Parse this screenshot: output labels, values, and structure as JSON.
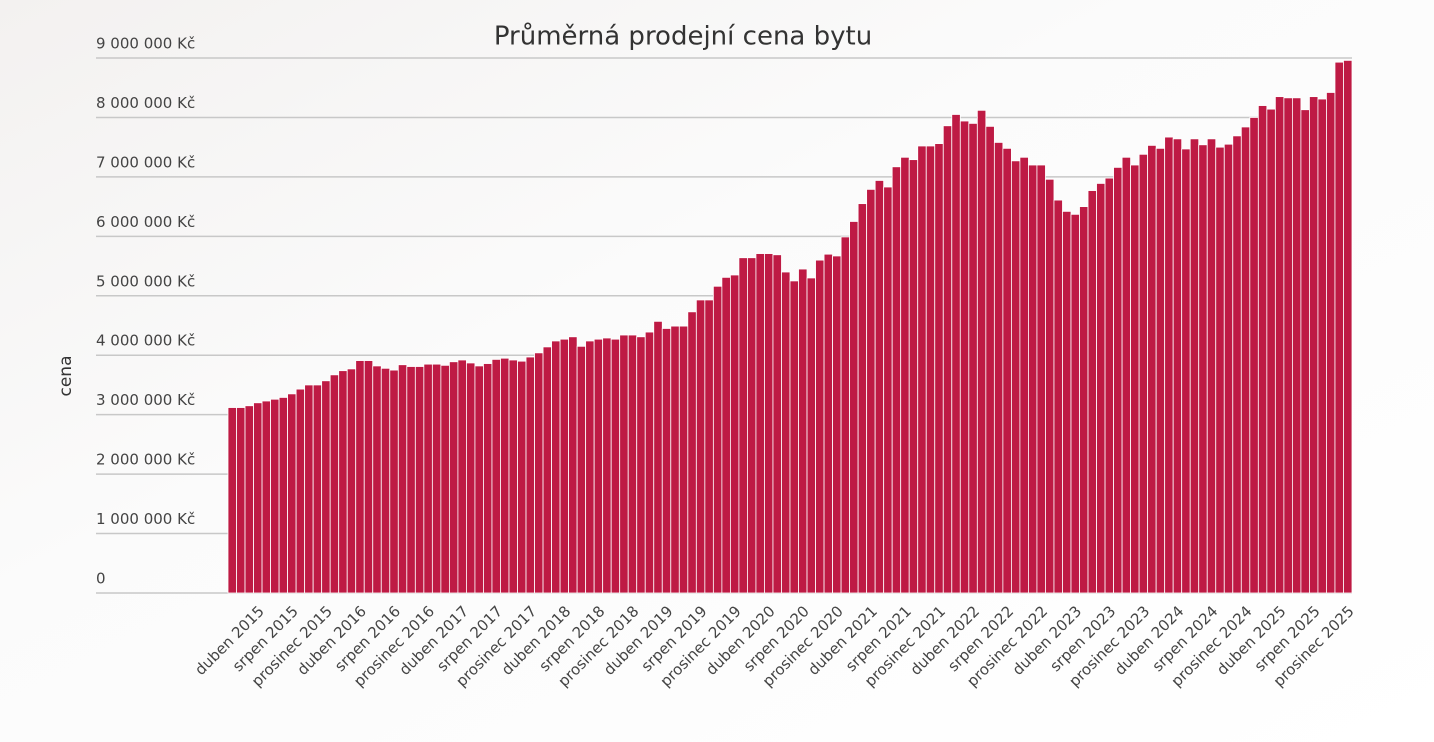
{
  "chart_data": {
    "type": "bar",
    "title": "Průměrná prodejní cena bytu",
    "y_label": "cena",
    "categories": [
      null,
      null,
      null,
      "duben 2015",
      null,
      null,
      null,
      "srpen 2015",
      null,
      null,
      null,
      "prosinec 2015",
      null,
      null,
      null,
      "duben 2016",
      null,
      null,
      null,
      "srpen 2016",
      null,
      null,
      null,
      "prosinec 2016",
      null,
      null,
      null,
      "duben 2017",
      null,
      null,
      null,
      "srpen 2017",
      null,
      null,
      null,
      "prosinec 2017",
      null,
      null,
      null,
      "duben 2018",
      null,
      null,
      null,
      "srpen 2018",
      null,
      null,
      null,
      "prosinec 2018",
      null,
      null,
      null,
      "duben 2019",
      null,
      null,
      null,
      "srpen 2019",
      null,
      null,
      null,
      "prosinec 2019",
      null,
      null,
      null,
      "duben 2020",
      null,
      null,
      null,
      "srpen 2020",
      null,
      null,
      null,
      "prosinec 2020",
      null,
      null,
      null,
      "duben 2021",
      null,
      null,
      null,
      "srpen 2021",
      null,
      null,
      null,
      "prosinec 2021",
      null,
      null,
      null,
      "duben 2022",
      null,
      null,
      null,
      "srpen 2022",
      null,
      null,
      null,
      "prosinec 2022",
      null,
      null,
      null,
      "duben 2023",
      null,
      null,
      null,
      "srpen 2023",
      null,
      null,
      null,
      "prosinec 2023",
      null,
      null,
      null,
      "duben 2024",
      null,
      null,
      null,
      "srpen 2024",
      null,
      null,
      null,
      "prosinec 2024",
      null,
      null,
      null,
      "duben 2025",
      null,
      null,
      null,
      "srpen 2025",
      null,
      null,
      null,
      "prosinec 2025"
    ],
    "values": [
      3120000,
      3120000,
      3150000,
      3200000,
      3230000,
      3260000,
      3290000,
      3350000,
      3430000,
      3500000,
      3500000,
      3570000,
      3670000,
      3740000,
      3770000,
      3910000,
      3910000,
      3820000,
      3780000,
      3750000,
      3840000,
      3810000,
      3810000,
      3850000,
      3850000,
      3830000,
      3890000,
      3920000,
      3870000,
      3820000,
      3860000,
      3930000,
      3950000,
      3920000,
      3900000,
      3970000,
      4040000,
      4140000,
      4240000,
      4270000,
      4310000,
      4150000,
      4240000,
      4270000,
      4290000,
      4270000,
      4340000,
      4340000,
      4310000,
      4390000,
      4570000,
      4450000,
      4490000,
      4490000,
      4730000,
      4930000,
      4930000,
      5160000,
      5310000,
      5350000,
      5640000,
      5640000,
      5710000,
      5710000,
      5690000,
      5400000,
      5250000,
      5450000,
      5300000,
      5600000,
      5700000,
      5670000,
      5990000,
      6250000,
      6550000,
      6790000,
      6940000,
      6830000,
      7170000,
      7330000,
      7290000,
      7520000,
      7520000,
      7560000,
      7860000,
      8050000,
      7940000,
      7900000,
      8120000,
      7850000,
      7580000,
      7480000,
      7270000,
      7330000,
      7200000,
      7200000,
      6960000,
      6610000,
      6420000,
      6370000,
      6500000,
      6770000,
      6890000,
      6980000,
      7160000,
      7330000,
      7200000,
      7380000,
      7530000,
      7480000,
      7670000,
      7640000,
      7470000,
      7640000,
      7540000,
      7640000,
      7500000,
      7550000,
      7690000,
      7840000,
      8000000,
      8200000,
      8140000,
      8350000,
      8330000,
      8330000,
      8130000,
      8350000,
      8310000,
      8420000,
      8930000,
      8960000
    ],
    "color": "#be1a44",
    "ylim": [
      0,
      9000000
    ],
    "yticks": [
      {
        "value": 0,
        "label": "0"
      },
      {
        "value": 1000000,
        "label": "1 000 000 Kč"
      },
      {
        "value": 2000000,
        "label": "2 000 000 Kč"
      },
      {
        "value": 3000000,
        "label": "3 000 000 Kč"
      },
      {
        "value": 4000000,
        "label": "4 000 000 Kč"
      },
      {
        "value": 5000000,
        "label": "5 000 000 Kč"
      },
      {
        "value": 6000000,
        "label": "6 000 000 Kč"
      },
      {
        "value": 7000000,
        "label": "7 000 000 Kč"
      },
      {
        "value": 8000000,
        "label": "8 000 000 Kč"
      },
      {
        "value": 9000000,
        "label": "9 000 000 Kč"
      }
    ],
    "grid": true
  }
}
